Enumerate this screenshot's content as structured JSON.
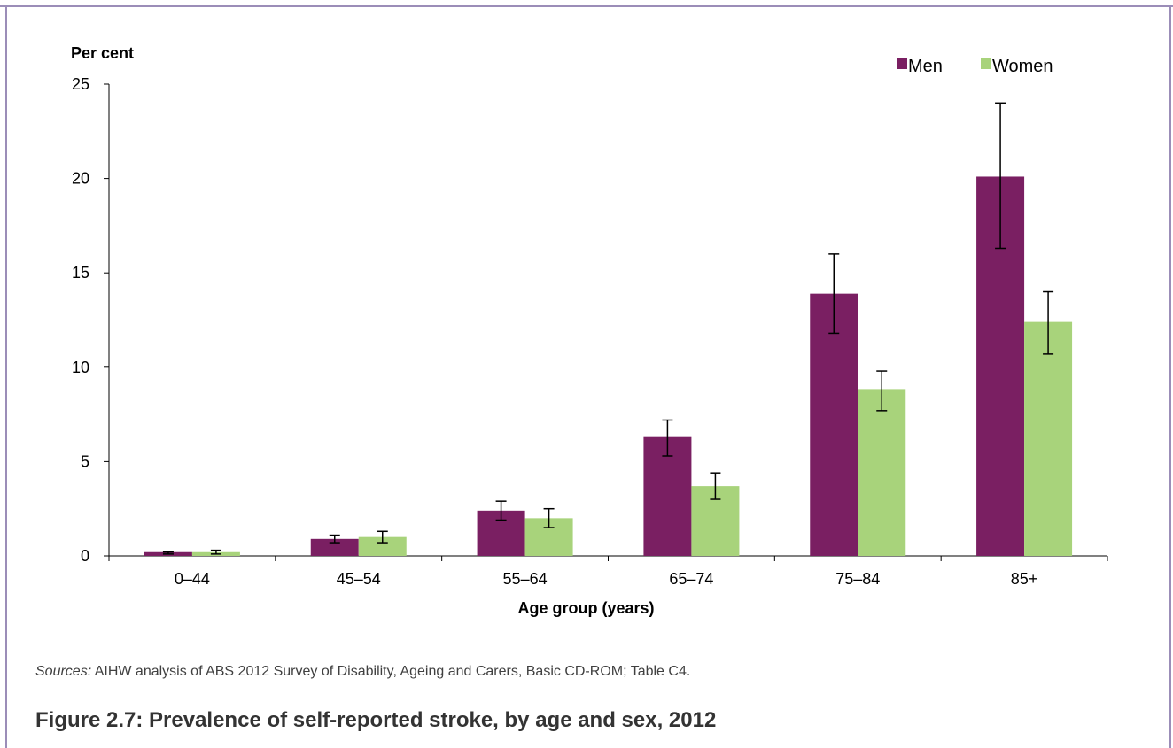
{
  "chart_data": {
    "type": "bar",
    "title": "",
    "ylabel": "Per cent",
    "xlabel": "Age group (years)",
    "ylim": [
      0,
      25
    ],
    "yticks": [
      0,
      5,
      10,
      15,
      20,
      25
    ],
    "categories": [
      "0–44",
      "45–54",
      "55–64",
      "65–74",
      "75–84",
      "85+"
    ],
    "series": [
      {
        "name": "Men",
        "color": "#7a1f62",
        "values": [
          0.2,
          0.9,
          2.4,
          6.3,
          13.9,
          20.1
        ],
        "err_low": [
          0.1,
          0.7,
          1.9,
          5.3,
          11.8,
          16.3
        ],
        "err_high": [
          0.2,
          1.1,
          2.9,
          7.2,
          16.0,
          24.0
        ]
      },
      {
        "name": "Women",
        "color": "#a8d37b",
        "values": [
          0.2,
          1.0,
          2.0,
          3.7,
          8.8,
          12.4
        ],
        "err_low": [
          0.1,
          0.7,
          1.5,
          3.0,
          7.7,
          10.7
        ],
        "err_high": [
          0.3,
          1.3,
          2.5,
          4.4,
          9.8,
          14.0
        ]
      }
    ],
    "grid": false,
    "legend": "top-right",
    "error_bars": true
  },
  "source": {
    "label": "Sources:",
    "text": "AIHW analysis of ABS 2012 Survey of Disability, Ageing and Carers, Basic CD-ROM; Table C4."
  },
  "figure_caption": "Figure 2.7: Prevalence of self-reported stroke, by age and sex, 2012"
}
